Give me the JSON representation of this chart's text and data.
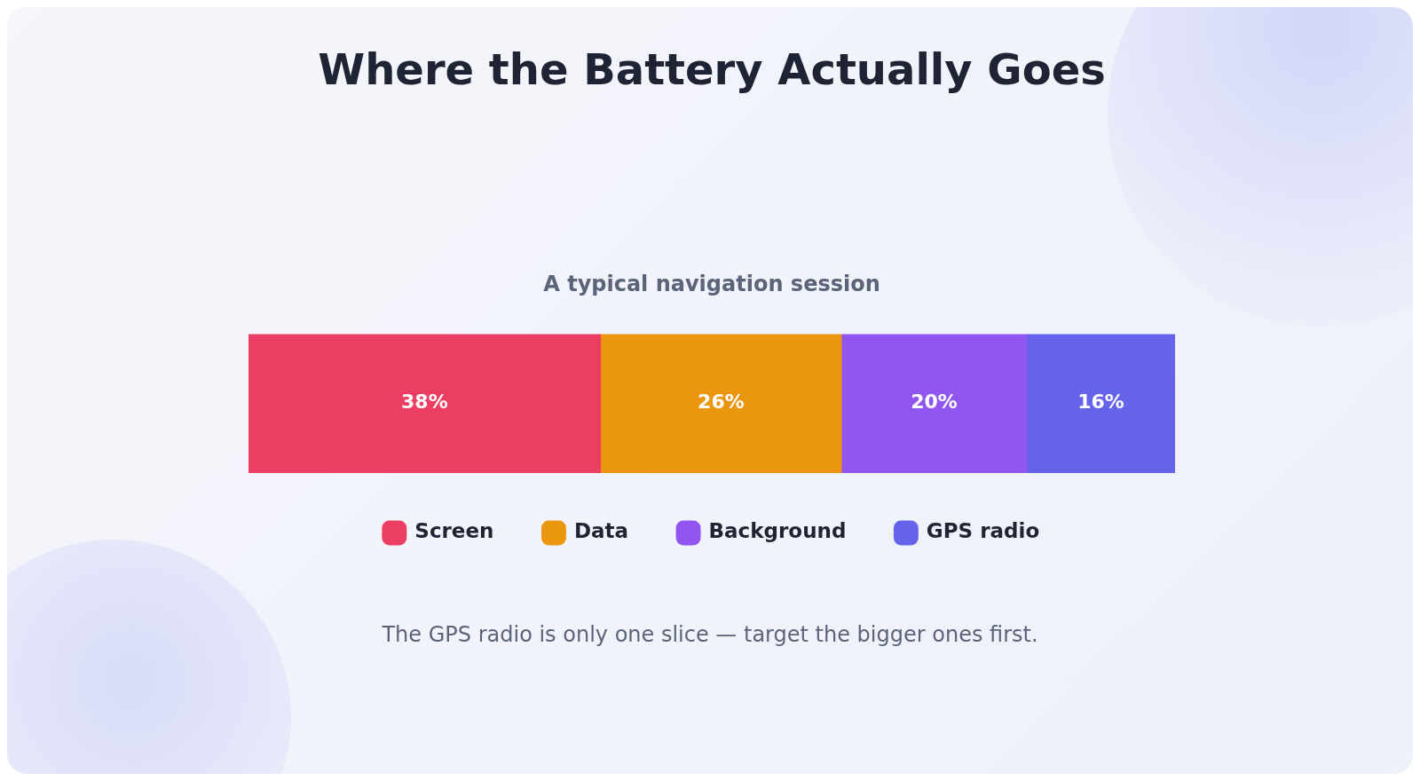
{
  "chart_data": {
    "type": "bar",
    "orientation": "horizontal",
    "stacked": true,
    "title": "Where the Battery Actually Goes",
    "subtitle": "A typical navigation session",
    "categories": [
      null
    ],
    "xlim": [
      0,
      100
    ],
    "tick_labels": false,
    "legend": "bottom",
    "series": [
      {
        "name": "Screen",
        "color": "#ec3d62",
        "values": [
          38
        ],
        "value_labels": [
          "38%"
        ]
      },
      {
        "name": "Data",
        "color": "#ea970f",
        "values": [
          26
        ],
        "value_labels": [
          "26%"
        ]
      },
      {
        "name": "Background",
        "color": "#9156ef",
        "values": [
          20
        ],
        "value_labels": [
          "20%"
        ]
      },
      {
        "name": "GPS radio",
        "color": "#6663eb",
        "values": [
          16
        ],
        "value_labels": [
          "16%"
        ]
      }
    ],
    "annotations": [
      "The GPS radio is only one slice — target the bigger ones first."
    ]
  }
}
